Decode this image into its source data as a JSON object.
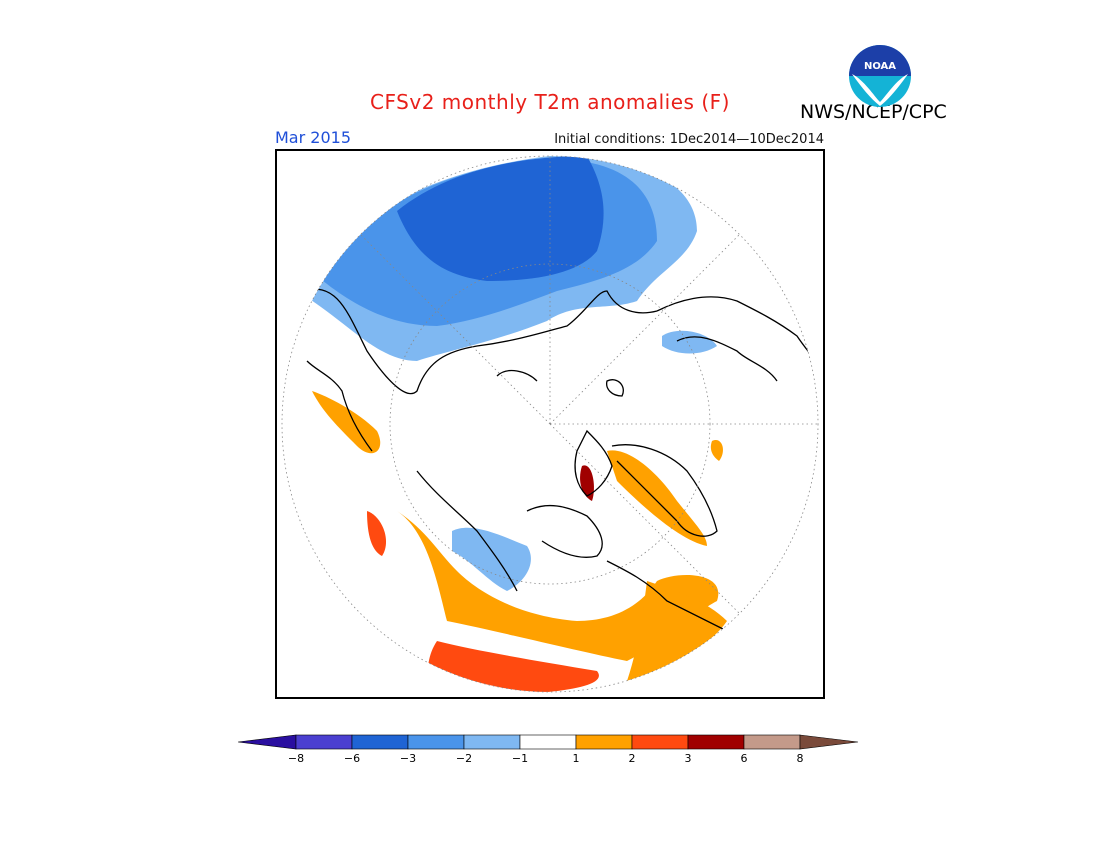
{
  "header": {
    "title": "CFSv2 monthly T2m anomalies (F)",
    "period": "Mar 2015",
    "initial_conditions": "Initial conditions: 1Dec2014—10Dec2014",
    "agency": "NWS/NCEP/CPC",
    "logo_text": "NOAA"
  },
  "legend": {
    "ticks": [
      "−8",
      "−6",
      "−3",
      "−2",
      "−1",
      "1",
      "2",
      "3",
      "6",
      "8"
    ],
    "colors": [
      "#2a0fa0",
      "#4b3fd0",
      "#1f64d4",
      "#4a94ea",
      "#7fb8f2",
      "#ffffff",
      "#ffa100",
      "#ff4a10",
      "#a00000",
      "#c49a8a",
      "#7a4a3a"
    ]
  },
  "colors": {
    "title": "#e8201a",
    "period": "#1f4fd8",
    "deep_cold": "#1f64d4",
    "mid_cold": "#4a94ea",
    "light_cold": "#7fb8f2",
    "warm": "#ffa100",
    "hot": "#ff4a10",
    "very_hot": "#a00000"
  }
}
